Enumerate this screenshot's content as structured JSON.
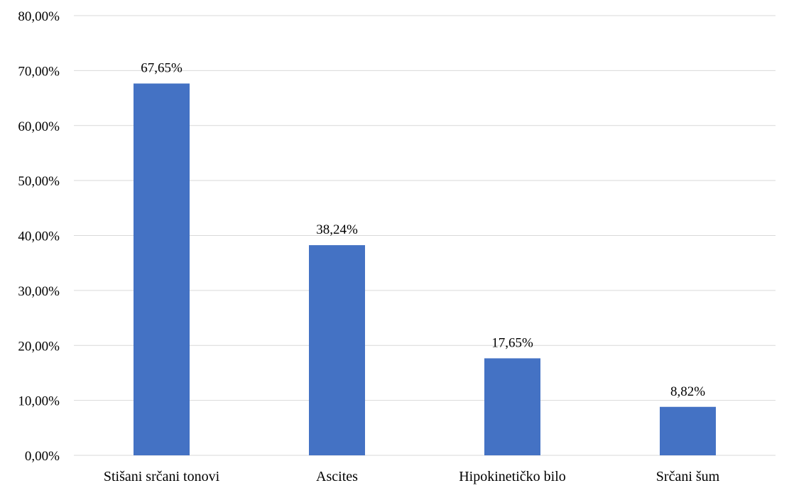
{
  "chart_data": {
    "type": "bar",
    "categories": [
      "Stišani srčani tonovi",
      "Ascites",
      "Hipokinetičko bilo",
      "Srčani šum"
    ],
    "values": [
      67.65,
      38.24,
      17.65,
      8.82
    ],
    "data_labels": [
      "67,65%",
      "38,24%",
      "17,65%",
      "8,82%"
    ],
    "ylim": [
      0,
      80
    ],
    "yticks": [
      0,
      10,
      20,
      30,
      40,
      50,
      60,
      70,
      80
    ],
    "ytick_labels": [
      "0,00%",
      "10,00%",
      "20,00%",
      "30,00%",
      "40,00%",
      "50,00%",
      "60,00%",
      "70,00%",
      "80,00%"
    ],
    "grid": true,
    "legend": "none",
    "bar_color": "#4472c4"
  }
}
